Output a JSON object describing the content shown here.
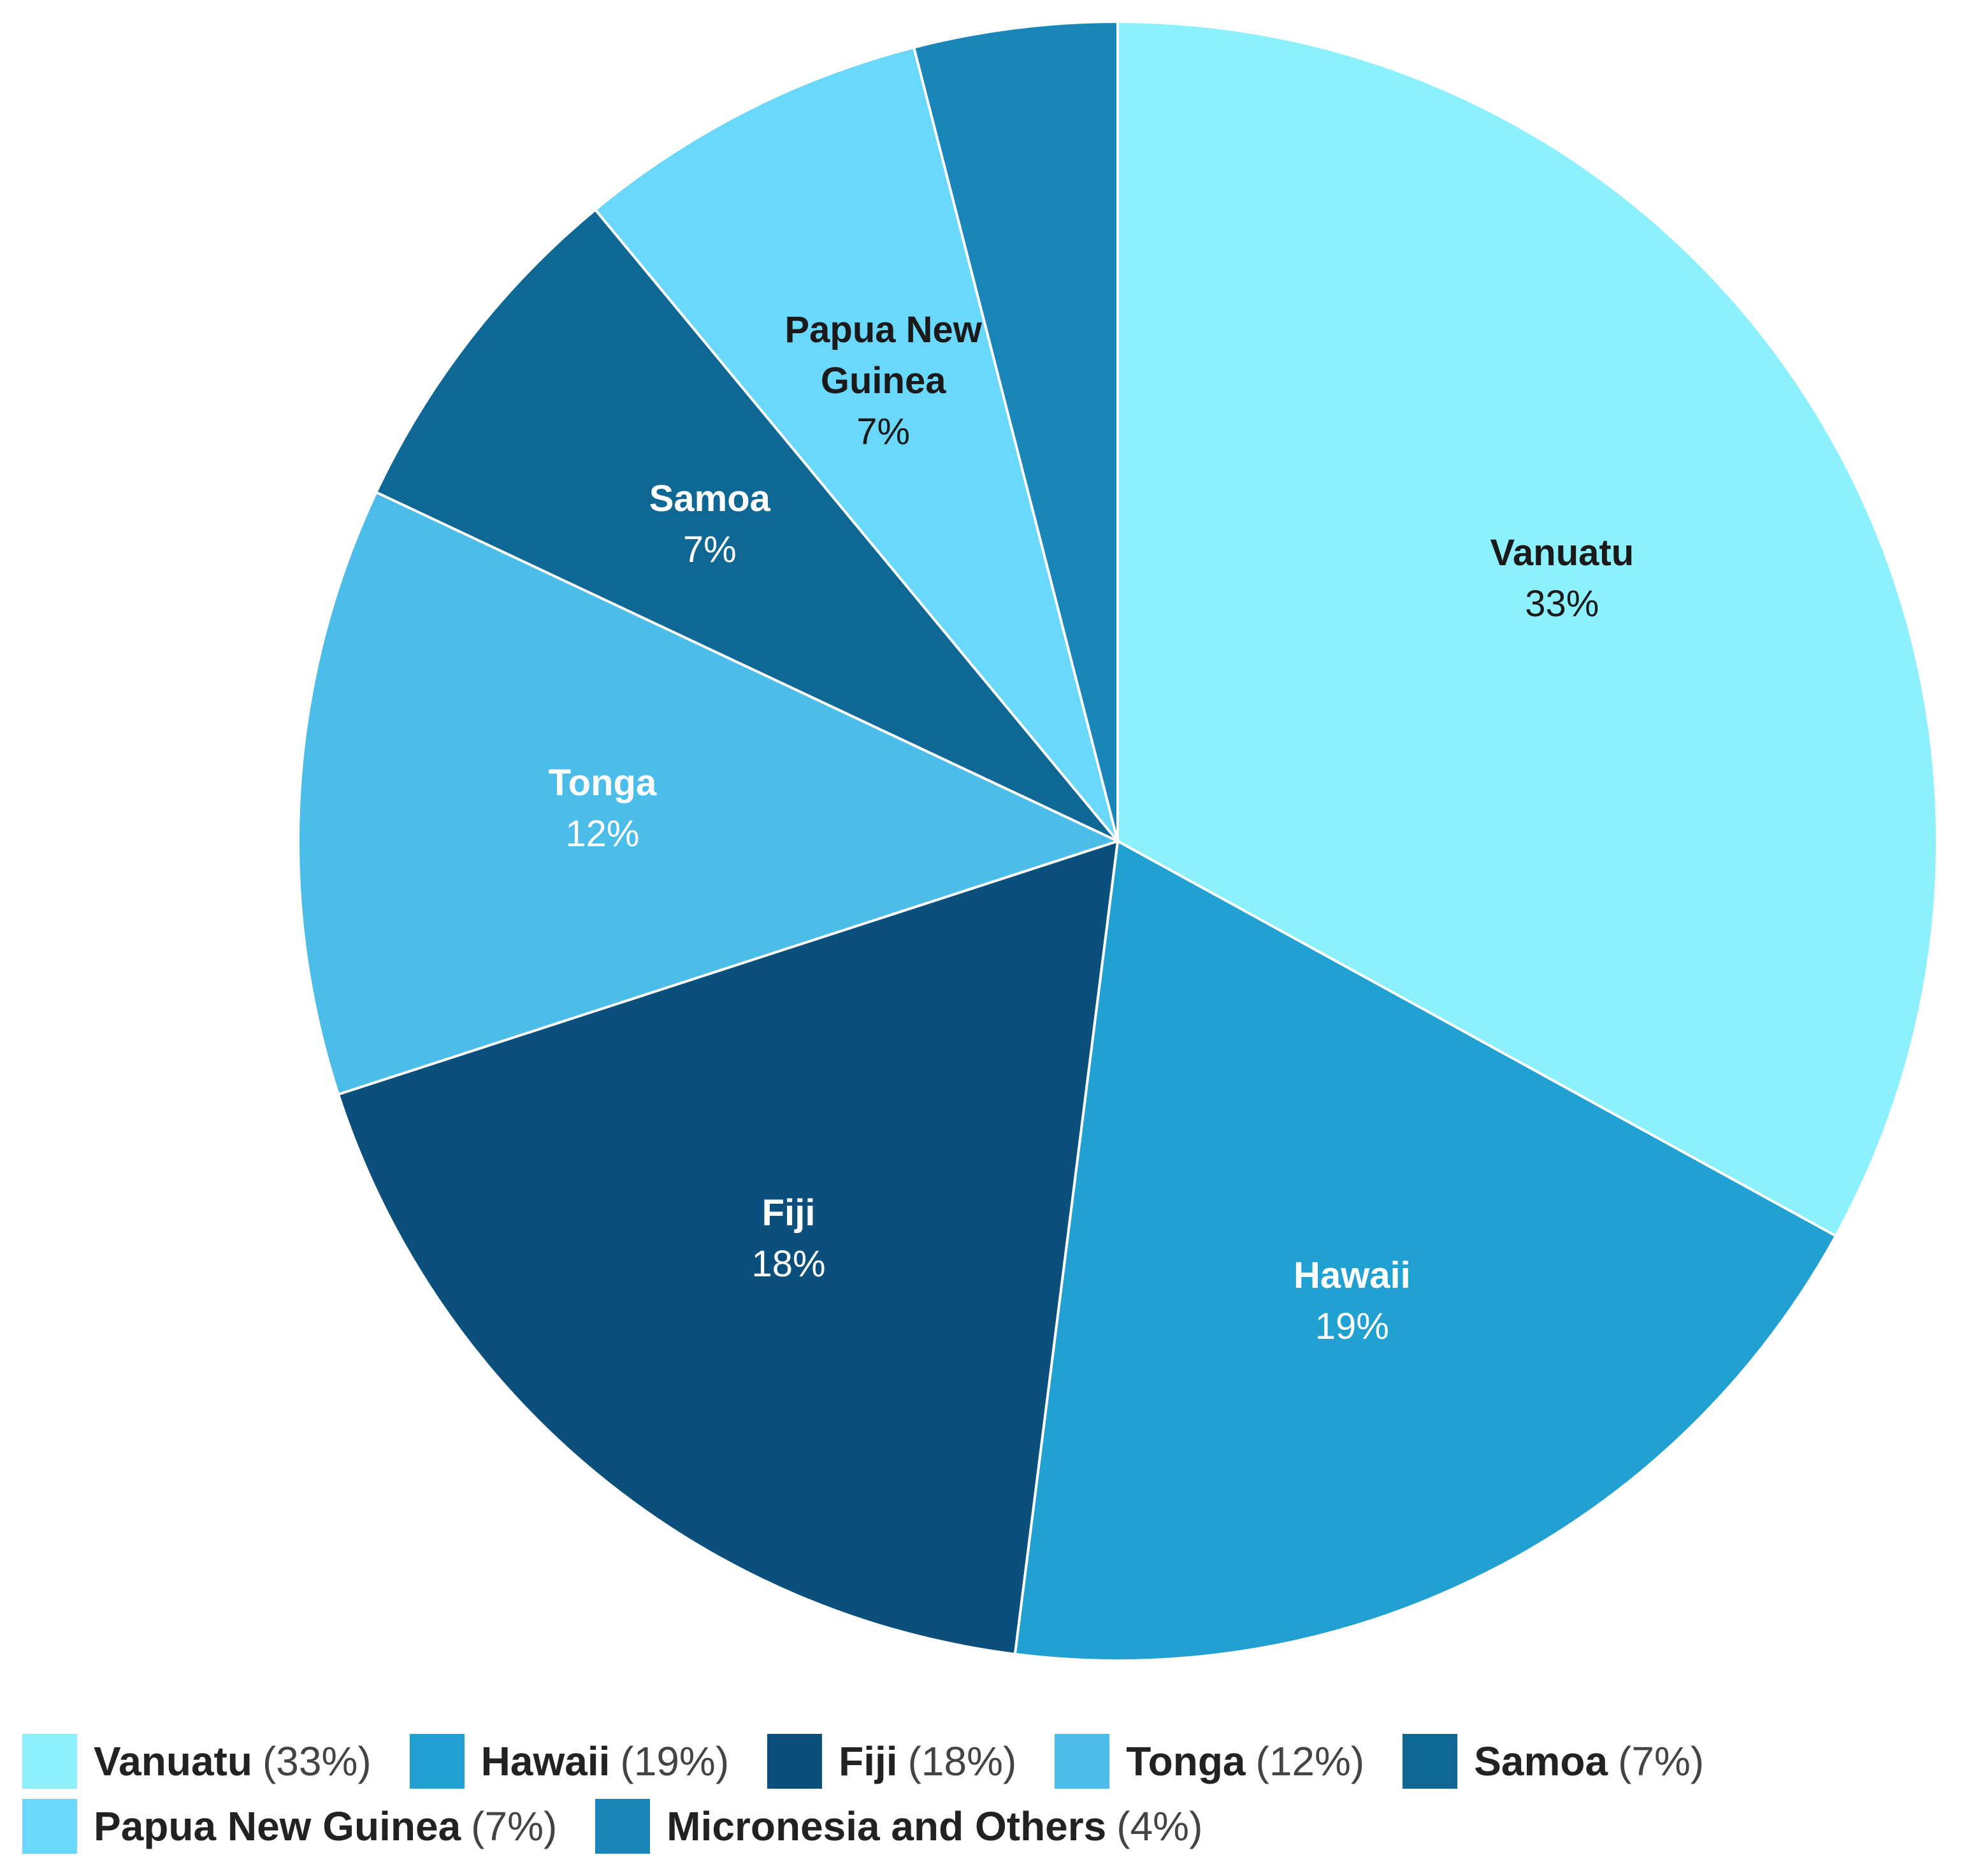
{
  "chart_data": {
    "type": "pie",
    "categories": [
      "Vanuatu",
      "Hawaii",
      "Fiji",
      "Tonga",
      "Samoa",
      "Papua New Guinea",
      "Micronesia and Others"
    ],
    "values": [
      33,
      19,
      18,
      12,
      7,
      7,
      4
    ],
    "value_labels": [
      "33%",
      "19%",
      "18%",
      "12%",
      "7%",
      "7%",
      null
    ],
    "legend_labels": [
      "(33%)",
      "(19%)",
      "(18%)",
      "(12%)",
      "(7%)",
      "(7%)",
      "(4%)"
    ],
    "colors": [
      "#8cf1fd",
      "#21a0d2",
      "#0b507c",
      "#4cbde9",
      "#0f6894",
      "#6ad8fb",
      "#1985b8"
    ],
    "legend": "bottom"
  }
}
